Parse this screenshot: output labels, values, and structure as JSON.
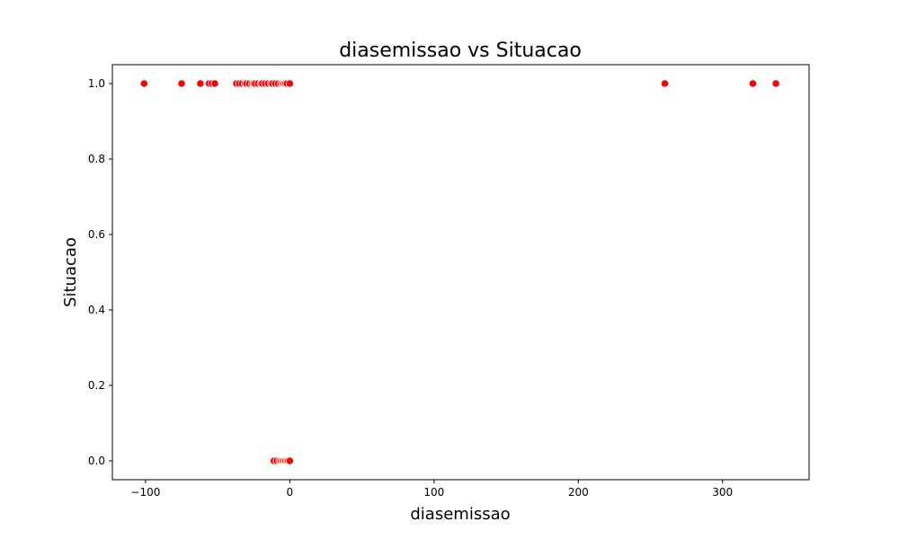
{
  "chart_data": {
    "type": "scatter",
    "title": "diasemissao vs Situacao",
    "xlabel": "diasemissao",
    "ylabel": "Situacao",
    "xlim": [
      -123,
      360
    ],
    "ylim": [
      -0.05,
      1.05
    ],
    "xticks": [
      -100,
      0,
      100,
      200,
      300
    ],
    "xtick_labels": [
      "−100",
      "0",
      "100",
      "200",
      "300"
    ],
    "yticks": [
      0.0,
      0.2,
      0.4,
      0.6,
      0.8,
      1.0
    ],
    "ytick_labels": [
      "0.0",
      "0.2",
      "0.4",
      "0.6",
      "0.8",
      "1.0"
    ],
    "grid": false,
    "marker_color": "#ff0000",
    "marker_edge_color": "#ffffff",
    "series": [
      {
        "x": [
          -101,
          -75,
          -62,
          -56,
          -54,
          -52,
          -37,
          -35,
          -33,
          -31,
          -30,
          -28,
          -26,
          -25,
          -24,
          -22,
          -20,
          -19,
          -17,
          -15,
          -13,
          -12,
          -10,
          -8,
          -6,
          -5,
          -4,
          -3,
          -2,
          0,
          260,
          321,
          337,
          -11,
          -9,
          -7,
          -6,
          -5,
          -4,
          -3,
          -2,
          -1,
          0
        ],
        "y": [
          1,
          1,
          1,
          1,
          1,
          1,
          1,
          1,
          1,
          1,
          1,
          1,
          1,
          1,
          1,
          1,
          1,
          1,
          1,
          1,
          1,
          1,
          1,
          1,
          1,
          1,
          1,
          1,
          1,
          1,
          1,
          1,
          1,
          0,
          0,
          0,
          0,
          0,
          0,
          0,
          0,
          0,
          0
        ]
      }
    ]
  }
}
